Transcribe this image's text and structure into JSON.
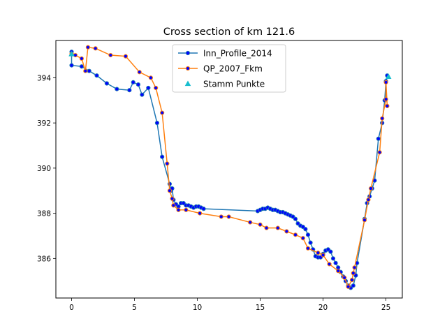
{
  "chart_data": {
    "type": "line",
    "title": "Cross section of km 121.6",
    "xlabel": "",
    "ylabel": "",
    "xlim": [
      -1.25,
      26.3
    ],
    "ylim": [
      384.25,
      395.65
    ],
    "xticks": [
      0,
      5,
      10,
      15,
      20,
      25
    ],
    "yticks": [
      386,
      388,
      390,
      392,
      394
    ],
    "grid": false,
    "legend_position": "upper-center",
    "series": [
      {
        "name": "Inn_Profile_2014",
        "kind": "line-markers",
        "line_color": "#1f77b4",
        "marker_face": "#0000ff",
        "marker_edge": "#1f77b4",
        "points": [
          [
            0.0,
            395.15
          ],
          [
            0.0,
            394.55
          ],
          [
            0.8,
            394.5
          ],
          [
            1.4,
            394.3
          ],
          [
            2.0,
            394.1
          ],
          [
            2.8,
            393.75
          ],
          [
            3.6,
            393.5
          ],
          [
            4.6,
            393.45
          ],
          [
            4.9,
            393.8
          ],
          [
            5.3,
            393.7
          ],
          [
            5.6,
            393.25
          ],
          [
            6.1,
            393.55
          ],
          [
            6.8,
            392.0
          ],
          [
            7.2,
            390.5
          ],
          [
            7.8,
            389.3
          ],
          [
            7.9,
            389.0
          ],
          [
            8.0,
            389.1
          ],
          [
            8.1,
            388.6
          ],
          [
            8.3,
            388.4
          ],
          [
            8.5,
            388.3
          ],
          [
            8.7,
            388.45
          ],
          [
            8.9,
            388.45
          ],
          [
            9.1,
            388.35
          ],
          [
            9.3,
            388.35
          ],
          [
            9.5,
            388.3
          ],
          [
            9.7,
            388.25
          ],
          [
            9.9,
            388.3
          ],
          [
            10.1,
            388.3
          ],
          [
            10.3,
            388.25
          ],
          [
            10.5,
            388.2
          ],
          [
            14.8,
            388.1
          ],
          [
            15.0,
            388.15
          ],
          [
            15.2,
            388.2
          ],
          [
            15.4,
            388.2
          ],
          [
            15.6,
            388.25
          ],
          [
            15.8,
            388.2
          ],
          [
            16.0,
            388.15
          ],
          [
            16.2,
            388.15
          ],
          [
            16.4,
            388.1
          ],
          [
            16.6,
            388.05
          ],
          [
            16.8,
            388.05
          ],
          [
            17.0,
            388.0
          ],
          [
            17.2,
            387.95
          ],
          [
            17.4,
            387.9
          ],
          [
            17.6,
            387.85
          ],
          [
            17.8,
            387.75
          ],
          [
            18.0,
            387.55
          ],
          [
            18.2,
            387.45
          ],
          [
            18.4,
            387.4
          ],
          [
            18.6,
            387.3
          ],
          [
            18.8,
            387.05
          ],
          [
            19.0,
            386.7
          ],
          [
            19.2,
            386.4
          ],
          [
            19.4,
            386.1
          ],
          [
            19.6,
            386.05
          ],
          [
            19.8,
            386.05
          ],
          [
            20.0,
            386.2
          ],
          [
            20.2,
            386.35
          ],
          [
            20.4,
            386.4
          ],
          [
            20.6,
            386.3
          ],
          [
            20.8,
            386.0
          ],
          [
            21.0,
            385.8
          ],
          [
            21.2,
            385.6
          ],
          [
            21.4,
            385.4
          ],
          [
            21.6,
            385.2
          ],
          [
            21.8,
            385.0
          ],
          [
            22.0,
            384.8
          ],
          [
            22.2,
            384.7
          ],
          [
            22.4,
            384.8
          ],
          [
            22.6,
            385.25
          ],
          [
            22.7,
            385.8
          ],
          [
            23.3,
            387.75
          ],
          [
            23.5,
            388.45
          ],
          [
            23.7,
            388.75
          ],
          [
            23.9,
            389.1
          ],
          [
            24.1,
            389.45
          ],
          [
            24.4,
            391.3
          ],
          [
            24.7,
            392.0
          ],
          [
            24.9,
            393.0
          ],
          [
            25.0,
            393.85
          ],
          [
            25.1,
            394.1
          ]
        ]
      },
      {
        "name": "QP_2007_Fkm",
        "kind": "line-markers",
        "line_color": "#ff7f0e",
        "marker_face": "#0000ff",
        "marker_edge": "#ff7f0e",
        "points": [
          [
            0.0,
            395.05
          ],
          [
            0.3,
            395.0
          ],
          [
            0.8,
            394.85
          ],
          [
            1.1,
            394.3
          ],
          [
            1.3,
            395.35
          ],
          [
            1.9,
            395.3
          ],
          [
            3.1,
            395.0
          ],
          [
            4.3,
            394.95
          ],
          [
            5.4,
            394.25
          ],
          [
            6.3,
            394.0
          ],
          [
            6.7,
            393.55
          ],
          [
            7.2,
            392.45
          ],
          [
            7.6,
            390.2
          ],
          [
            7.8,
            389.0
          ],
          [
            8.0,
            388.65
          ],
          [
            8.1,
            388.35
          ],
          [
            8.5,
            388.15
          ],
          [
            9.1,
            388.15
          ],
          [
            10.2,
            388.0
          ],
          [
            11.9,
            387.85
          ],
          [
            12.5,
            387.85
          ],
          [
            14.2,
            387.6
          ],
          [
            15.0,
            387.5
          ],
          [
            15.5,
            387.35
          ],
          [
            16.4,
            387.35
          ],
          [
            17.1,
            387.2
          ],
          [
            17.8,
            387.05
          ],
          [
            18.4,
            386.9
          ],
          [
            18.8,
            386.45
          ],
          [
            19.6,
            386.25
          ],
          [
            20.0,
            386.15
          ],
          [
            20.5,
            385.75
          ],
          [
            21.2,
            385.45
          ],
          [
            21.7,
            385.15
          ],
          [
            22.0,
            384.75
          ],
          [
            22.3,
            385.05
          ],
          [
            22.4,
            385.35
          ],
          [
            22.5,
            385.6
          ],
          [
            23.3,
            387.7
          ],
          [
            23.6,
            388.6
          ],
          [
            23.8,
            389.1
          ],
          [
            24.5,
            390.7
          ],
          [
            24.7,
            392.2
          ],
          [
            25.0,
            393.05
          ],
          [
            25.0,
            393.8
          ],
          [
            25.1,
            392.75
          ]
        ]
      },
      {
        "name": "Stamm Punkte",
        "kind": "scatter",
        "marker": "triangle",
        "color": "#17becf",
        "points": [
          [
            0.0,
            395.05
          ],
          [
            25.2,
            394.05
          ]
        ]
      }
    ]
  }
}
